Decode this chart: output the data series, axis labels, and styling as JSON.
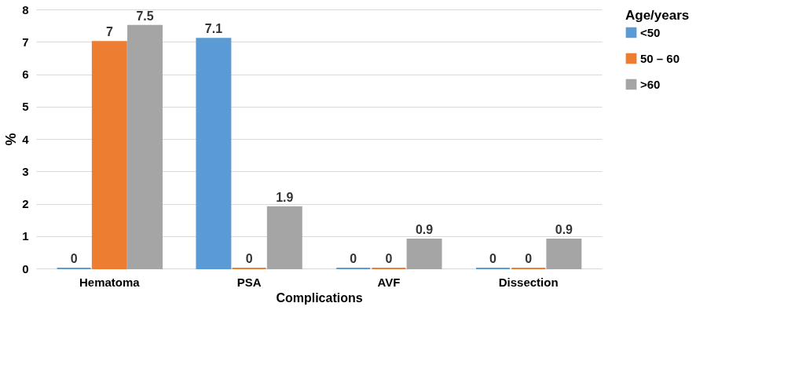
{
  "chart_data": {
    "type": "bar",
    "xlabel": "Complications",
    "ylabel": "%",
    "legend_title": "Age/years",
    "categories": [
      "Hematoma",
      "PSA",
      "AVF",
      "Dissection"
    ],
    "series": [
      {
        "name": "<50",
        "color": "#5b9bd5",
        "values": [
          0,
          7.1,
          0,
          0
        ]
      },
      {
        "name": "50 – 60",
        "color": "#ed7d31",
        "values": [
          7,
          0,
          0,
          0
        ]
      },
      {
        "name": ">60",
        "color": "#a5a5a5",
        "values": [
          7.5,
          1.9,
          0.9,
          0.9
        ]
      }
    ],
    "ylim": [
      0,
      8
    ],
    "yticks": [
      0,
      1,
      2,
      3,
      4,
      5,
      6,
      7,
      8
    ],
    "grid": "y",
    "legend": "top right",
    "data_labels": true
  }
}
